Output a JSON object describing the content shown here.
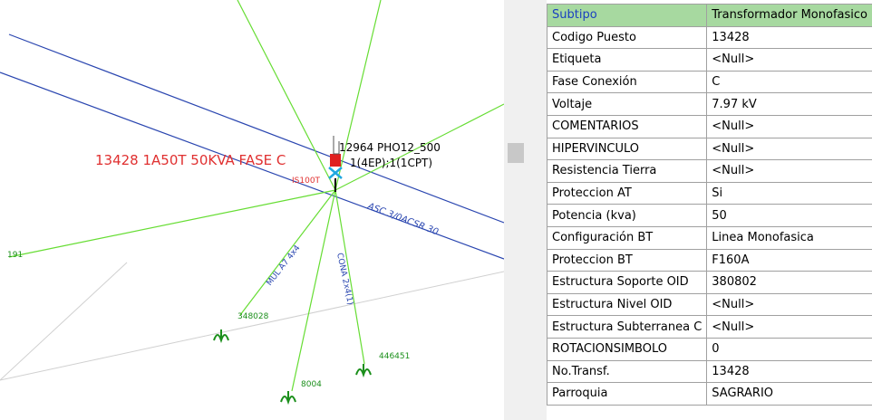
{
  "map": {
    "labels": {
      "station": "13428   1A50T   50KVA   FASE C",
      "pole": "12964   PHO12_500",
      "equip": "1(4EP);1(1CPT)",
      "fuse": "IS100T",
      "line_asc": "ASC 3/0ACSR 30",
      "line_mul": "MUL A7 4x4",
      "line_cona": "CONA 2x4(1)",
      "node1": "348028",
      "node2": "8004",
      "node3": "446451",
      "edge": "191"
    }
  },
  "table": {
    "rows": [
      [
        "Subtipo",
        "Transformador Monofasico"
      ],
      [
        "Codigo Puesto",
        "13428"
      ],
      [
        "Etiqueta",
        "<Null>"
      ],
      [
        "Fase Conexión",
        "C"
      ],
      [
        "Voltaje",
        "7.97 kV"
      ],
      [
        "COMENTARIOS",
        "<Null>"
      ],
      [
        "HIPERVINCULO",
        "<Null>"
      ],
      [
        "Resistencia Tierra",
        "<Null>"
      ],
      [
        "Proteccion AT",
        "Si"
      ],
      [
        "Potencia (kva)",
        "50"
      ],
      [
        "Configuración BT",
        "Linea Monofasica"
      ],
      [
        "Proteccion BT",
        "F160A"
      ],
      [
        "Estructura Soporte OID",
        "380802"
      ],
      [
        "Estructura Nivel OID",
        "<Null>"
      ],
      [
        "Estructura Subterranea C",
        "<Null>"
      ],
      [
        "ROTACIONSIMBOLO",
        "0"
      ],
      [
        "No.Transf.",
        "13428"
      ],
      [
        "Parroquia",
        "SAGRARIO"
      ]
    ]
  }
}
